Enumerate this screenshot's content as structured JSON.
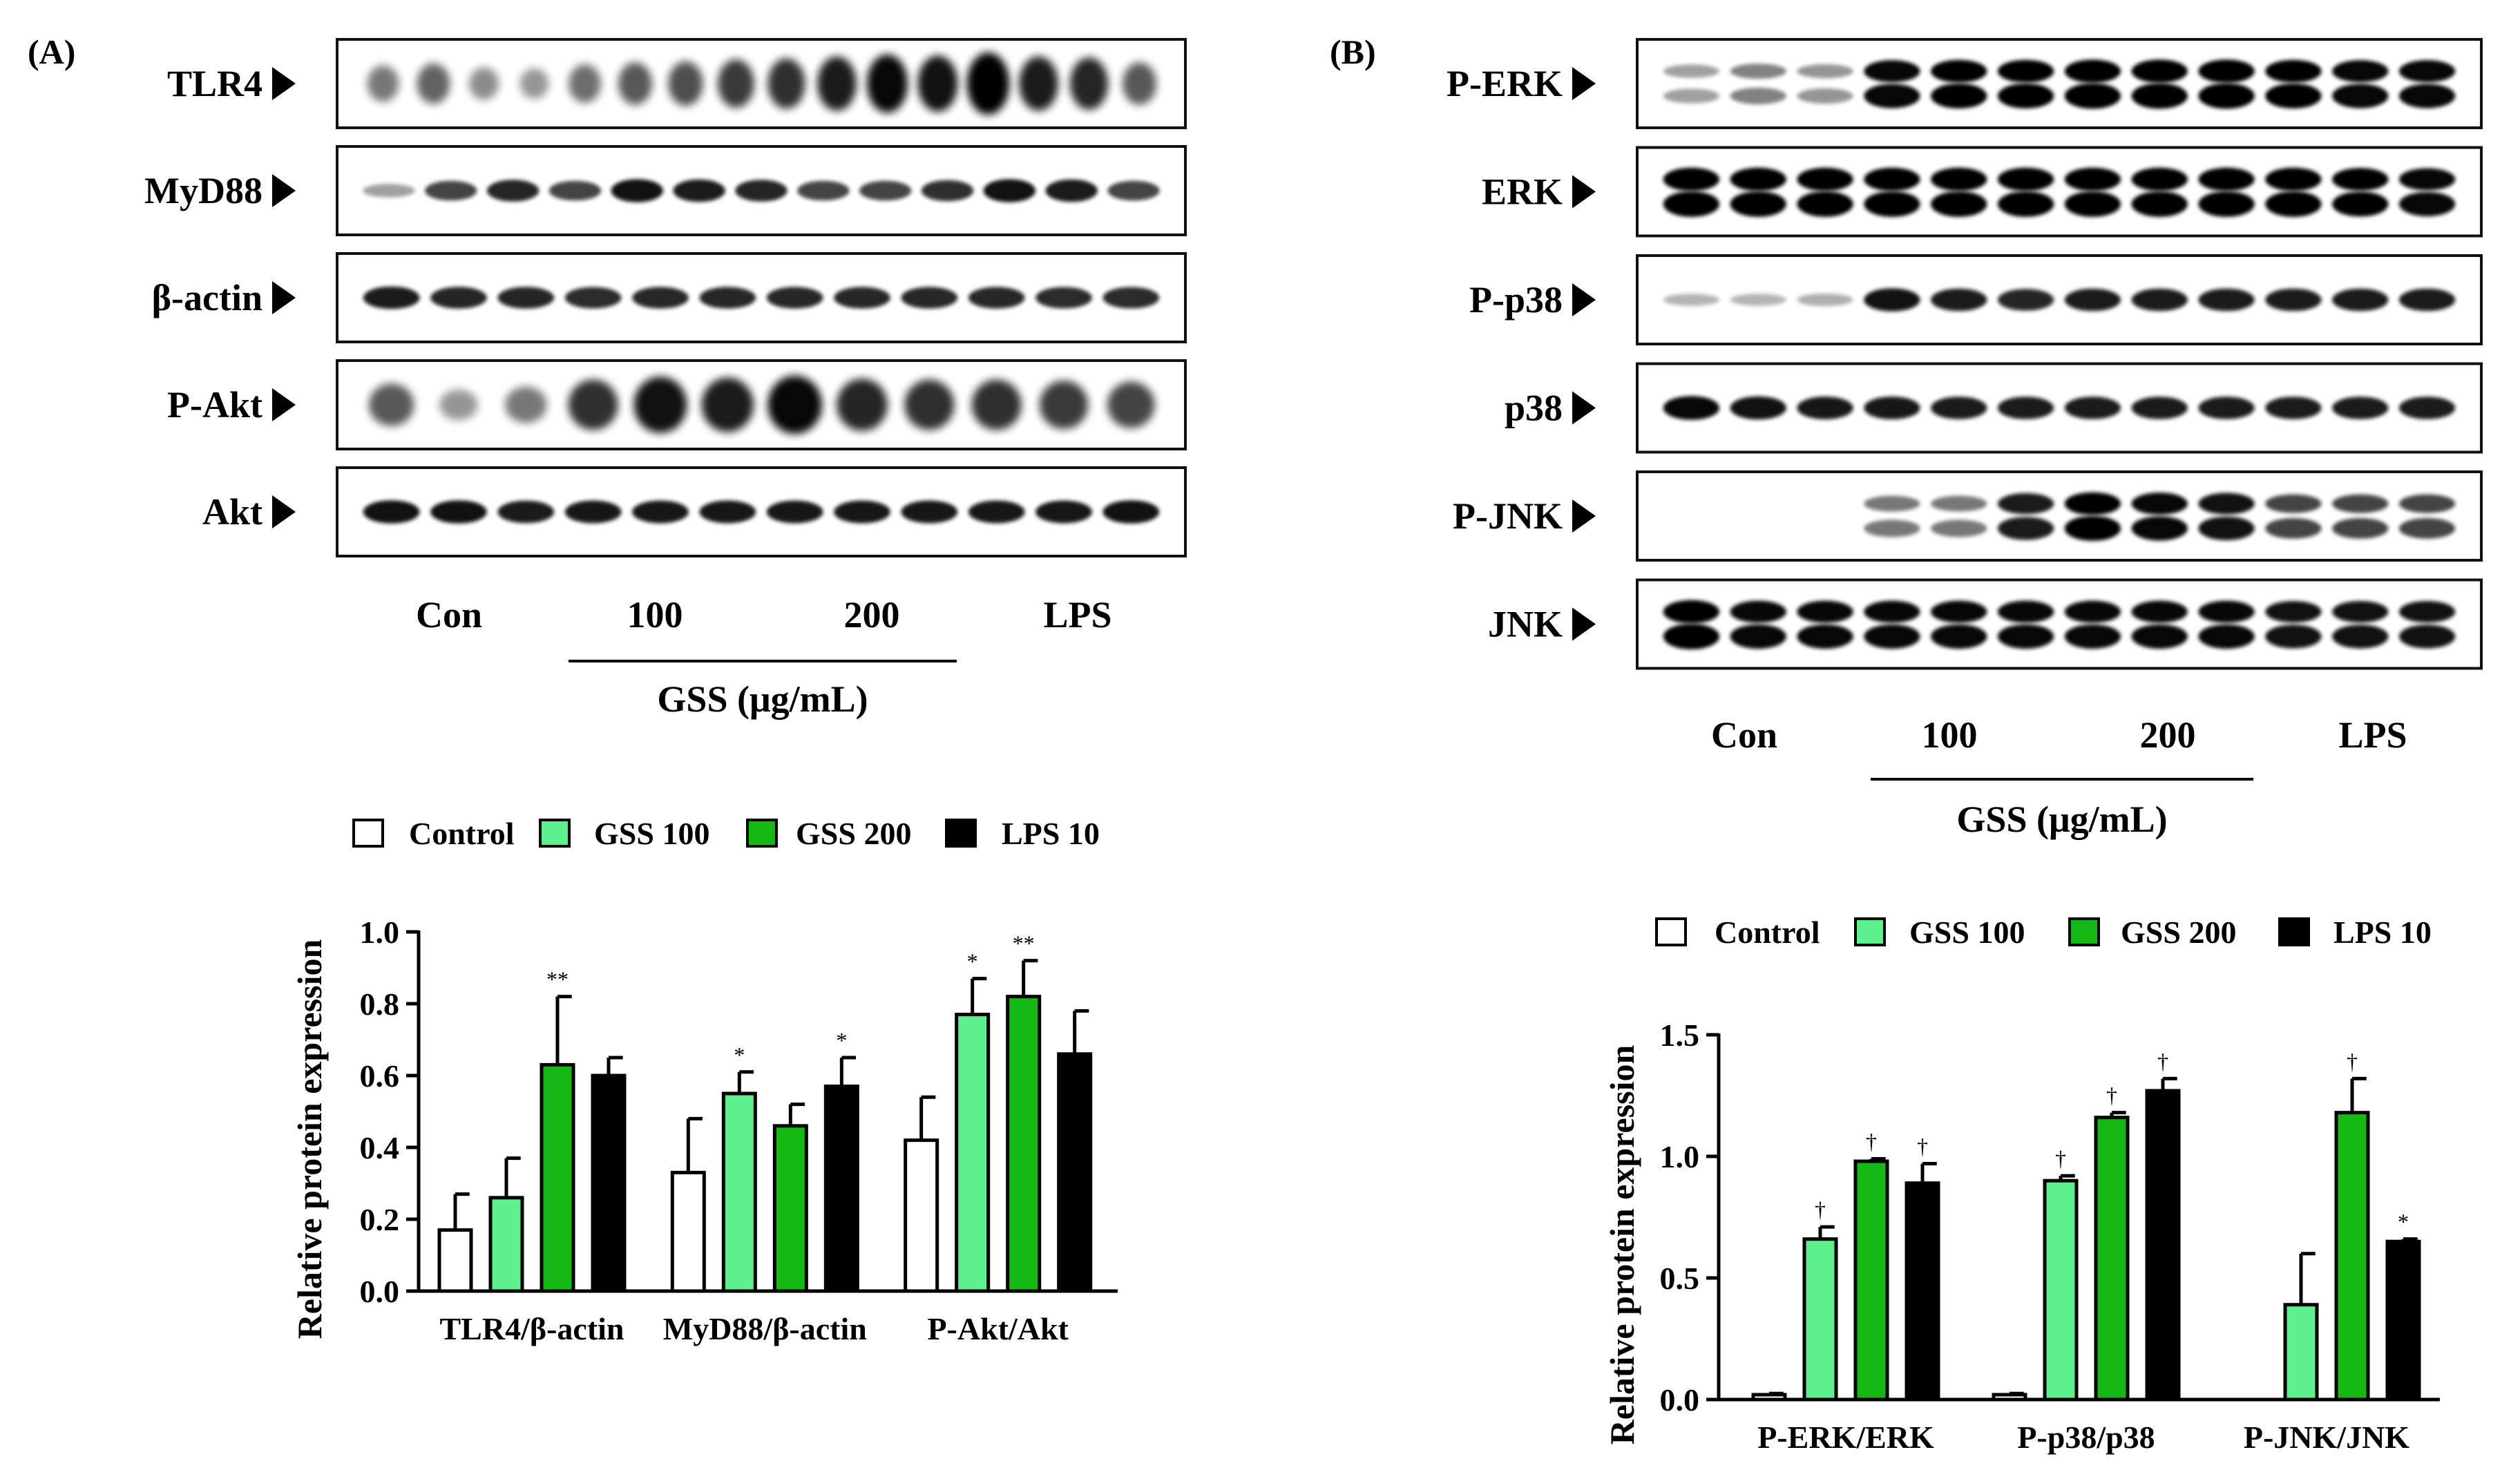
{
  "panels": [
    {
      "label": "(A)",
      "blot": {
        "rows": [
          {
            "name": "TLR4",
            "bands": [
              0.35,
              0.45,
              0.25,
              0.2,
              0.4,
              0.5,
              0.55,
              0.65,
              0.7,
              0.8,
              0.9,
              0.85,
              1.0,
              0.8,
              0.75,
              0.5
            ],
            "style": "fuzzy"
          },
          {
            "name": "MyD88",
            "bands": [
              0.15,
              0.6,
              0.75,
              0.6,
              0.85,
              0.8,
              0.75,
              0.6,
              0.6,
              0.7,
              0.85,
              0.8,
              0.6
            ],
            "style": "normal"
          },
          {
            "name": "β-actin",
            "bands": [
              0.8,
              0.75,
              0.75,
              0.72,
              0.74,
              0.74,
              0.74,
              0.74,
              0.74,
              0.74,
              0.72,
              0.72
            ],
            "style": "normal"
          },
          {
            "name": "P-Akt",
            "bands": [
              0.5,
              0.2,
              0.35,
              0.7,
              0.85,
              0.8,
              0.9,
              0.75,
              0.7,
              0.7,
              0.65,
              0.6
            ],
            "style": "fuzzy"
          },
          {
            "name": "Akt",
            "bands": [
              0.85,
              0.85,
              0.8,
              0.82,
              0.82,
              0.82,
              0.82,
              0.82,
              0.82,
              0.82,
              0.82,
              0.85
            ],
            "style": "normal"
          }
        ],
        "lanes": {
          "con": "Con",
          "g100": "100",
          "g200": "200",
          "lps": "LPS",
          "gss": "GSS (μg/mL)"
        }
      },
      "legend": [
        "Control",
        "GSS 100",
        "GSS 200",
        "LPS 10"
      ]
    },
    {
      "label": "(B)",
      "blot": {
        "rows": [
          {
            "name": "P-ERK",
            "bands": [
              0.15,
              0.3,
              0.2,
              0.9,
              0.95,
              0.95,
              1.0,
              1.0,
              1.0,
              0.95,
              0.9,
              0.9
            ],
            "style": "double"
          },
          {
            "name": "ERK",
            "bands": [
              1,
              1,
              1,
              1,
              1,
              1,
              1,
              1,
              1,
              1,
              0.95,
              0.9
            ],
            "style": "double"
          },
          {
            "name": "P-p38",
            "bands": [
              0.05,
              0.05,
              0.08,
              0.85,
              0.8,
              0.75,
              0.8,
              0.8,
              0.8,
              0.8,
              0.8,
              0.8
            ],
            "style": "normal"
          },
          {
            "name": "p38",
            "bands": [
              0.9,
              0.85,
              0.82,
              0.82,
              0.8,
              0.8,
              0.8,
              0.8,
              0.8,
              0.8,
              0.8,
              0.8
            ],
            "style": "normal"
          },
          {
            "name": "P-JNK",
            "bands": [
              0.0,
              0.0,
              0.0,
              0.35,
              0.35,
              0.8,
              0.95,
              0.9,
              0.85,
              0.6,
              0.6,
              0.6
            ],
            "style": "double"
          },
          {
            "name": "JNK",
            "bands": [
              1,
              0.9,
              0.9,
              0.9,
              0.9,
              0.9,
              0.9,
              0.9,
              0.9,
              0.85,
              0.85,
              0.85
            ],
            "style": "double"
          }
        ],
        "lanes": {
          "con": "Con",
          "g100": "100",
          "g200": "200",
          "lps": "LPS",
          "gss": "GSS (μg/mL)"
        }
      },
      "legend": [
        "Control",
        "GSS 100",
        "GSS 200",
        "LPS 10"
      ]
    }
  ],
  "chart_data": [
    {
      "type": "bar",
      "title": "",
      "ylabel": "Relative protein expression",
      "xlabel": "",
      "ylim": [
        0,
        1.0
      ],
      "yticks": [
        "0.0",
        "0.2",
        "0.4",
        "0.6",
        "0.8",
        "1.0"
      ],
      "categories": [
        "TLR4/β-actin",
        "MyD88/β-actin",
        "P-Akt/Akt"
      ],
      "series": [
        {
          "name": "Control",
          "color": "#ffffff",
          "values": [
            0.17,
            0.33,
            0.42
          ],
          "errors": [
            0.1,
            0.15,
            0.12
          ],
          "marks": [
            "",
            "",
            ""
          ]
        },
        {
          "name": "GSS 100",
          "color": "#5ef08c",
          "values": [
            0.26,
            0.55,
            0.77
          ],
          "errors": [
            0.11,
            0.06,
            0.1
          ],
          "marks": [
            "",
            "*",
            "*"
          ]
        },
        {
          "name": "GSS 200",
          "color": "#16b816",
          "values": [
            0.63,
            0.46,
            0.82
          ],
          "errors": [
            0.19,
            0.06,
            0.1
          ],
          "marks": [
            "**",
            "",
            "**"
          ]
        },
        {
          "name": "LPS 10",
          "color": "#000000",
          "values": [
            0.6,
            0.57,
            0.66
          ],
          "errors": [
            0.05,
            0.08,
            0.12
          ],
          "marks": [
            "",
            "*",
            ""
          ]
        }
      ]
    },
    {
      "type": "bar",
      "title": "",
      "ylabel": "Relative protein expression",
      "xlabel": "",
      "ylim": [
        0,
        1.5
      ],
      "yticks": [
        "0.0",
        "0.5",
        "1.0",
        "1.5"
      ],
      "categories": [
        "P-ERK/ERK",
        "P-p38/p38",
        "P-JNK/JNK"
      ],
      "series": [
        {
          "name": "Control",
          "color": "#ffffff",
          "values": [
            0.02,
            0.02,
            0.0
          ],
          "errors": [
            0.005,
            0.005,
            0.0
          ],
          "marks": [
            "",
            "",
            ""
          ]
        },
        {
          "name": "GSS 100",
          "color": "#5ef08c",
          "values": [
            0.66,
            0.9,
            0.39
          ],
          "errors": [
            0.05,
            0.02,
            0.21
          ],
          "marks": [
            "†",
            "†",
            ""
          ]
        },
        {
          "name": "GSS 200",
          "color": "#16b816",
          "values": [
            0.98,
            1.16,
            1.18
          ],
          "errors": [
            0.01,
            0.02,
            0.14
          ],
          "marks": [
            "†",
            "†",
            "†"
          ]
        },
        {
          "name": "LPS 10",
          "color": "#000000",
          "values": [
            0.89,
            1.27,
            0.65
          ],
          "errors": [
            0.08,
            0.05,
            0.01
          ],
          "marks": [
            "†",
            "†",
            "*"
          ]
        }
      ]
    }
  ]
}
